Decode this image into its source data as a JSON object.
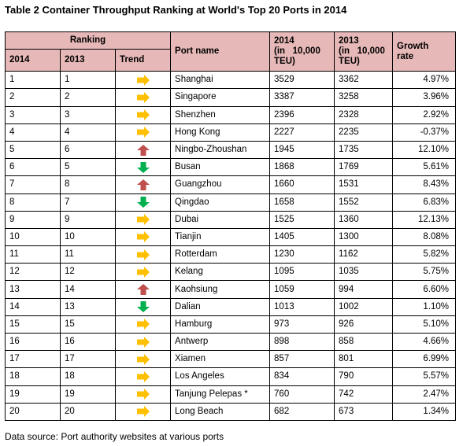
{
  "title": "Table 2 Container Throughput Ranking at World's Top 20 Ports in 2014",
  "headers": {
    "ranking": "Ranking",
    "y2014": "2014",
    "y2013": "2013",
    "trend": "Trend",
    "port_name": "Port name",
    "tp2014": [
      "2014",
      "(in   10,000",
      "TEU)"
    ],
    "tp2013": [
      "2013",
      "(in   10,000",
      "TEU)"
    ],
    "growth": [
      "Growth",
      "rate"
    ]
  },
  "trend_colors": {
    "flat": "#ffc000",
    "up": "#c0504d",
    "down": "#00b050"
  },
  "rows": [
    {
      "r2014": "1",
      "r2013": "1",
      "trend": "flat",
      "port": "Shanghai",
      "tp2014": "3529",
      "tp2013": "3362",
      "growth": "4.97%"
    },
    {
      "r2014": "2",
      "r2013": "2",
      "trend": "flat",
      "port": "Singapore",
      "tp2014": "3387",
      "tp2013": "3258",
      "growth": "3.96%"
    },
    {
      "r2014": "3",
      "r2013": "3",
      "trend": "flat",
      "port": "Shenzhen",
      "tp2014": "2396",
      "tp2013": "2328",
      "growth": "2.92%"
    },
    {
      "r2014": "4",
      "r2013": "4",
      "trend": "flat",
      "port": "Hong Kong",
      "tp2014": "2227",
      "tp2013": "2235",
      "growth": "-0.37%"
    },
    {
      "r2014": "5",
      "r2013": "6",
      "trend": "up",
      "port": "Ningbo-Zhoushan",
      "tp2014": "1945",
      "tp2013": "1735",
      "growth": "12.10%"
    },
    {
      "r2014": "6",
      "r2013": "5",
      "trend": "down",
      "port": "Busan",
      "tp2014": "1868",
      "tp2013": "1769",
      "growth": "5.61%"
    },
    {
      "r2014": "7",
      "r2013": "8",
      "trend": "up",
      "port": "Guangzhou",
      "tp2014": "1660",
      "tp2013": "1531",
      "growth": "8.43%"
    },
    {
      "r2014": "8",
      "r2013": "7",
      "trend": "down",
      "port": "Qingdao",
      "tp2014": "1658",
      "tp2013": "1552",
      "growth": "6.83%"
    },
    {
      "r2014": "9",
      "r2013": "9",
      "trend": "flat",
      "port": "Dubai",
      "tp2014": "1525",
      "tp2013": "1360",
      "growth": "12.13%"
    },
    {
      "r2014": "10",
      "r2013": "10",
      "trend": "flat",
      "port": "Tianjin",
      "tp2014": "1405",
      "tp2013": "1300",
      "growth": "8.08%"
    },
    {
      "r2014": "11",
      "r2013": "11",
      "trend": "flat",
      "port": "Rotterdam",
      "tp2014": "1230",
      "tp2013": "1162",
      "growth": "5.82%"
    },
    {
      "r2014": "12",
      "r2013": "12",
      "trend": "flat",
      "port": "Kelang",
      "tp2014": "1095",
      "tp2013": "1035",
      "growth": "5.75%"
    },
    {
      "r2014": "13",
      "r2013": "14",
      "trend": "up",
      "port": "Kaohsiung",
      "tp2014": "1059",
      "tp2013": "994",
      "growth": "6.60%"
    },
    {
      "r2014": "14",
      "r2013": "13",
      "trend": "down",
      "port": "Dalian",
      "tp2014": "1013",
      "tp2013": "1002",
      "growth": "1.10%"
    },
    {
      "r2014": "15",
      "r2013": "15",
      "trend": "flat",
      "port": "Hamburg",
      "tp2014": "973",
      "tp2013": "926",
      "growth": "5.10%"
    },
    {
      "r2014": "16",
      "r2013": "16",
      "trend": "flat",
      "port": "Antwerp",
      "tp2014": "898",
      "tp2013": "858",
      "growth": "4.66%"
    },
    {
      "r2014": "17",
      "r2013": "17",
      "trend": "flat",
      "port": "Xiamen",
      "tp2014": "857",
      "tp2013": "801",
      "growth": "6.99%"
    },
    {
      "r2014": "18",
      "r2013": "18",
      "trend": "flat",
      "port": "Los Angeles",
      "tp2014": "834",
      "tp2013": "790",
      "growth": "5.57%"
    },
    {
      "r2014": "19",
      "r2013": "19",
      "trend": "flat",
      "port": "Tanjung Pelepas *",
      "tp2014": "760",
      "tp2013": "742",
      "growth": "2.47%"
    },
    {
      "r2014": "20",
      "r2013": "20",
      "trend": "flat",
      "port": "Long Beach",
      "tp2014": "682",
      "tp2013": "673",
      "growth": "1.34%"
    }
  ],
  "source": "Data source: Port authority websites at various ports"
}
